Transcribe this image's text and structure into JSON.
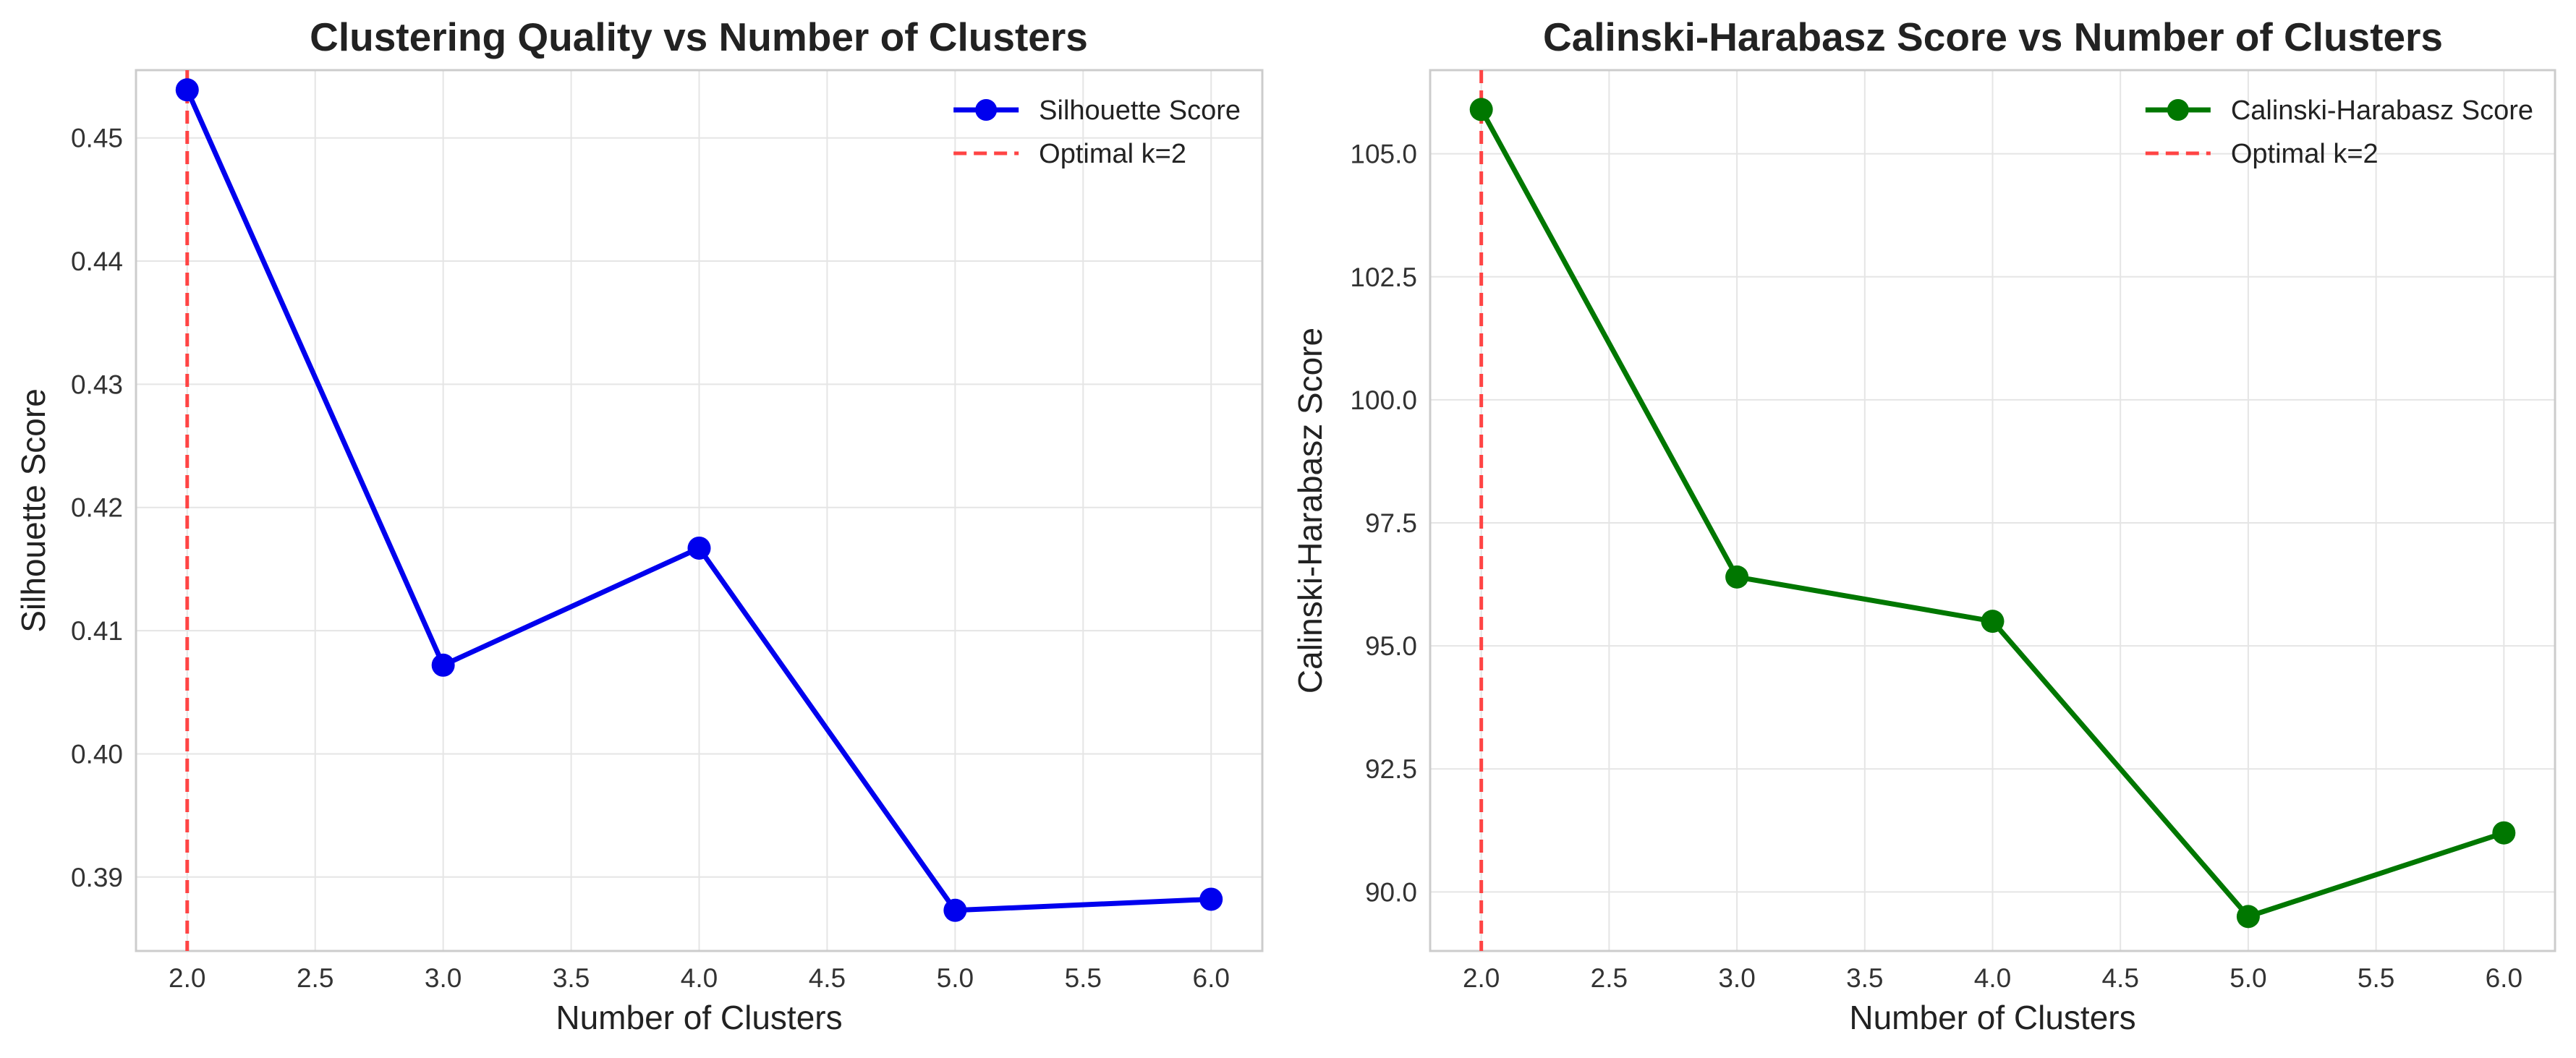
{
  "chart_data": [
    {
      "type": "line",
      "title": "Clustering Quality vs Number of Clusters",
      "xlabel": "Number of Clusters",
      "ylabel": "Silhouette Score",
      "x": [
        2,
        3,
        4,
        5,
        6
      ],
      "xlim": [
        1.8,
        6.2
      ],
      "ylim": [
        0.384,
        0.4555
      ],
      "xticks": [
        "2.0",
        "2.5",
        "3.0",
        "3.5",
        "4.0",
        "4.5",
        "5.0",
        "5.5",
        "6.0"
      ],
      "yticks": [
        "0.39",
        "0.40",
        "0.41",
        "0.42",
        "0.43",
        "0.44",
        "0.45"
      ],
      "grid": true,
      "legend": "top-right",
      "series": [
        {
          "name": "Silhouette Score",
          "color": "#0000ee",
          "values": [
            0.4539,
            0.4072,
            0.4167,
            0.3873,
            0.3882
          ]
        }
      ],
      "vline": {
        "name": "Optimal k=2",
        "x": 2,
        "color": "#ff4444"
      }
    },
    {
      "type": "line",
      "title": "Calinski-Harabasz Score vs Number of Clusters",
      "xlabel": "Number of Clusters",
      "ylabel": "Calinski-Harabasz Score",
      "x": [
        2,
        3,
        4,
        5,
        6
      ],
      "xlim": [
        1.8,
        6.2
      ],
      "ylim": [
        88.8,
        106.7
      ],
      "xticks": [
        "2.0",
        "2.5",
        "3.0",
        "3.5",
        "4.0",
        "4.5",
        "5.0",
        "5.5",
        "6.0"
      ],
      "yticks": [
        "90.0",
        "92.5",
        "95.0",
        "97.5",
        "100.0",
        "102.5",
        "105.0"
      ],
      "grid": true,
      "legend": "top-right",
      "series": [
        {
          "name": "Calinski-Harabasz Score",
          "color": "#007700",
          "values": [
            105.9,
            96.4,
            95.5,
            89.5,
            91.2
          ]
        }
      ],
      "vline": {
        "name": "Optimal k=2",
        "x": 2,
        "color": "#ff4444"
      }
    }
  ]
}
